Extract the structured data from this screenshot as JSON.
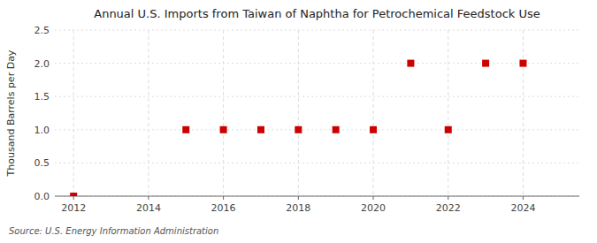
{
  "chart_data": {
    "type": "scatter",
    "title": "Annual U.S. Imports from Taiwan of Naphtha for Petrochemical Feedstock Use",
    "y_label": "Thousand Barrels per Day",
    "annotations": [
      "Source: U.S. Energy Information Administration"
    ],
    "x": [
      2012,
      2015,
      2016,
      2017,
      2018,
      2019,
      2020,
      2021,
      2022,
      2023,
      2024
    ],
    "values": [
      0.0,
      1.0,
      1.0,
      1.0,
      1.0,
      1.0,
      1.0,
      2.0,
      1.0,
      2.0,
      2.0
    ],
    "color": "#cc0000",
    "marker": "square",
    "xlim": [
      2011.5,
      2025.5
    ],
    "ylim": [
      0.0,
      2.5
    ],
    "xticks": [
      2012,
      2014,
      2016,
      2018,
      2020,
      2022,
      2024
    ],
    "yticks": [
      {
        "value": 0.0,
        "label": "0.0"
      },
      0.5,
      {
        "value": 1.0,
        "label": "1.0"
      },
      1.5,
      {
        "value": 2.0,
        "label": "2.0"
      },
      2.5
    ],
    "grid": true
  }
}
